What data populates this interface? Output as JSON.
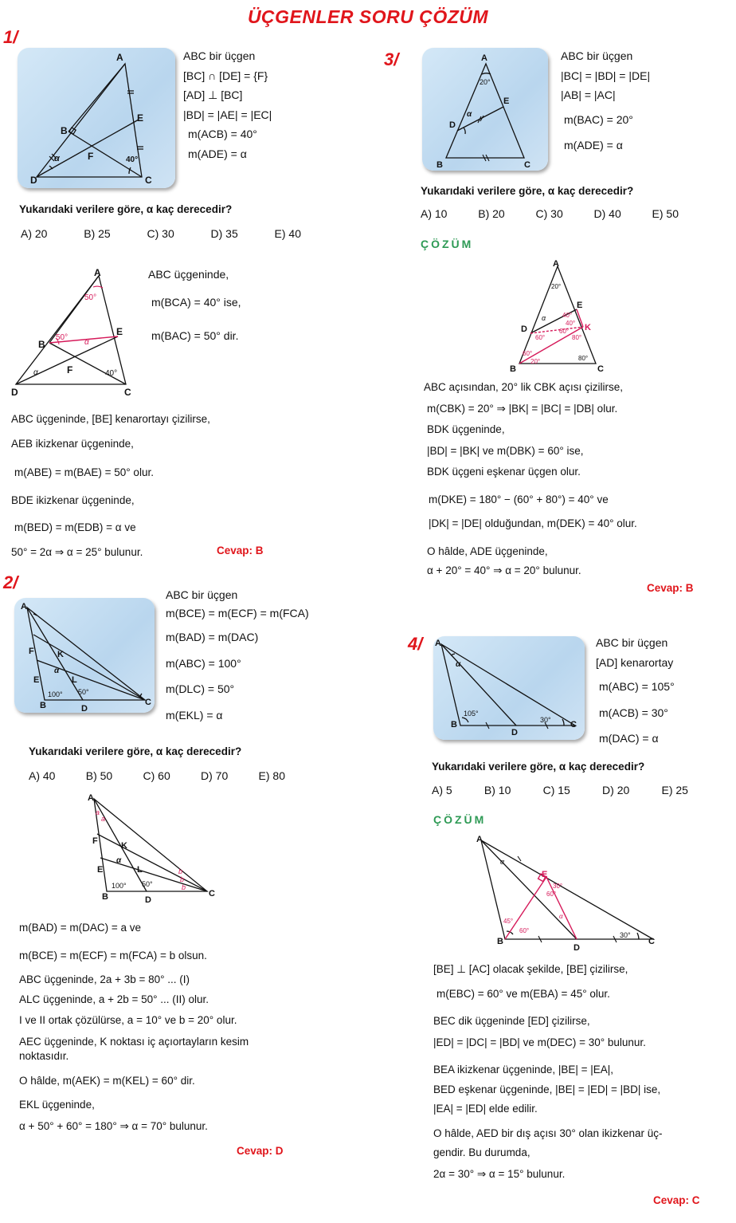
{
  "title": "ÜÇGENLER SORU ÇÖZÜM",
  "q1": {
    "num": "1/",
    "givens": [
      "ABC  bir üçgen",
      "[BC] ∩ [DE] = {F}",
      "[AD] ⊥ [BC]",
      "|BD| = |AE| = |EC|",
      "m(ACB) = 40°",
      "m(ADE) = α"
    ],
    "question": "Yukarıdaki verilere göre,  α  kaç derecedir?",
    "options": [
      "A) 20",
      "B) 25",
      "C) 30",
      "D) 35",
      "E) 40"
    ],
    "fig1_labels": [
      "A",
      "B",
      "C",
      "D",
      "E",
      "F",
      "α",
      "40°"
    ],
    "sol_side": [
      "ABC  üçgeninde,",
      "m(BCA) = 40°  ise,",
      "m(BAC) = 50°  dir."
    ],
    "fig2_labels": [
      "A",
      "B",
      "C",
      "D",
      "E",
      "F",
      "50°",
      "50°",
      "α",
      "α",
      "40°"
    ],
    "solution": [
      "ABC  üçgeninde,  [BE]  kenarortayı çizilirse,",
      "AEB  ikizkenar üçgeninde,",
      "m(ABE) = m(BAE) = 50°   olur.",
      "BDE  ikizkenar üçgeninde,",
      "m(BED) = m(EDB) = α   ve",
      "50° = 2α  ⇒  α = 25°  bulunur."
    ],
    "answer": "Cevap: B"
  },
  "q2": {
    "num": "2/",
    "givens": [
      "ABC  bir üçgen",
      "m(BCE) = m(ECF) = m(FCA)",
      "m(BAD) = m(DAC)",
      "m(ABC) = 100°",
      "m(DLC) = 50°",
      "m(EKL) = α"
    ],
    "question": "Yukarıdaki verilere göre,  α  kaç derecedir?",
    "options": [
      "A) 40",
      "B) 50",
      "C) 60",
      "D) 70",
      "E) 80"
    ],
    "fig1_labels": [
      "A",
      "B",
      "C",
      "D",
      "E",
      "F",
      "K",
      "L",
      "α",
      "100°",
      "50°"
    ],
    "fig2_labels": [
      "A",
      "B",
      "C",
      "D",
      "E",
      "F",
      "K",
      "L",
      "α",
      "100°",
      "50°",
      "a",
      "a",
      "b",
      "b",
      "b"
    ],
    "solution": [
      "m(BAD) = m(DAC) = a   ve",
      "m(BCE) = m(ECF) = m(FCA) = b   olsun.",
      "ABC  üçgeninde,  2a + 3b = 80°  ... (I)",
      "ALC  üçgeninde,  a + 2b = 50°  ... (II)  olur.",
      "I ve II  ortak çözülürse,  a = 10°  ve  b = 20°  olur.",
      "AEC  üçgeninde,   K  noktası iç açıortayların kesim",
      "noktasıdır.",
      "O hâlde,  m(AEK) = m(KEL) = 60°  dir.",
      "EKL  üçgeninde,",
      "α + 50° + 60° = 180°  ⇒  α = 70°  bulunur."
    ],
    "answer": "Cevap: D"
  },
  "q3": {
    "num": "3/",
    "givens": [
      "ABC  bir üçgen",
      "|BC| = |BD| = |DE|",
      "|AB| = |AC|",
      "m(BAC) = 20°",
      "m(ADE) = α"
    ],
    "question": "Yukarıdaki verilere göre,  α  kaç derecedir?",
    "options": [
      "A) 10",
      "B) 20",
      "C) 30",
      "D) 40",
      "E) 50"
    ],
    "fig1_labels": [
      "A",
      "B",
      "C",
      "D",
      "E",
      "20°",
      "α"
    ],
    "cozum": "ÇÖZÜM",
    "fig2_labels": [
      "A",
      "B",
      "C",
      "D",
      "E",
      "K",
      "20°",
      "α",
      "40°",
      "40°",
      "60°",
      "60°",
      "80°",
      "60°",
      "20°",
      "80°"
    ],
    "solution": [
      "ABC  açısından,  20° lik  CBK  açısı çizilirse,",
      "m(CBK) = 20°  ⇒  |BK| = |BC| = |DB|   olur.",
      "BDK  üçgeninde,",
      "|BD| = |BK|  ve   m(DBK) = 60°   ise,",
      "BDK  üçgeni eşkenar üçgen olur.",
      "m(DKE) = 180° − (60° + 80°) = 40°   ve",
      "|DK| = |DE|  olduğundan,   m(DEK) = 40°   olur.",
      "O hâlde,  ADE  üçgeninde,",
      "α + 20° = 40°  ⇒  α = 20°  bulunur."
    ],
    "answer": "Cevap: B"
  },
  "q4": {
    "num": "4/",
    "givens": [
      "ABC  bir üçgen",
      "[AD]  kenarortay",
      "m(ABC) = 105°",
      "m(ACB) = 30°",
      "m(DAC) = α"
    ],
    "question": "Yukarıdaki verilere göre,  α  kaç derecedir?",
    "options": [
      "A) 5",
      "B) 10",
      "C) 15",
      "D) 20",
      "E) 25"
    ],
    "fig1_labels": [
      "A",
      "B",
      "C",
      "D",
      "α",
      "105°",
      "30°"
    ],
    "cozum": "ÇÖZÜM",
    "fig2_labels": [
      "A",
      "B",
      "C",
      "D",
      "E",
      "α",
      "α",
      "45°",
      "60°",
      "60°",
      "30°",
      "30°"
    ],
    "solution": [
      "[BE] ⊥ [AC]  olacak şekilde,  [BE]  çizilirse,",
      "m(EBC) = 60°   ve   m(EBA) = 45°   olur.",
      "BEC  dik üçgeninde  [ED]  çizilirse,",
      "|ED| = |DC| = |BD|  ve   m(DEC) = 30°   bulunur.",
      "BEA  ikizkenar üçgeninde,  |BE| = |EA|,",
      "BED  eşkenar üçgeninde,  |BE| = |ED| = |BD|  ise,",
      "|EA| = |ED|  elde edilir.",
      "O hâlde,  AED  bir dış açısı  30°  olan ikizkenar üç-",
      "gendir. Bu durumda,",
      "2α = 30°  ⇒  α = 15°  bulunur."
    ],
    "answer": "Cevap: C"
  }
}
